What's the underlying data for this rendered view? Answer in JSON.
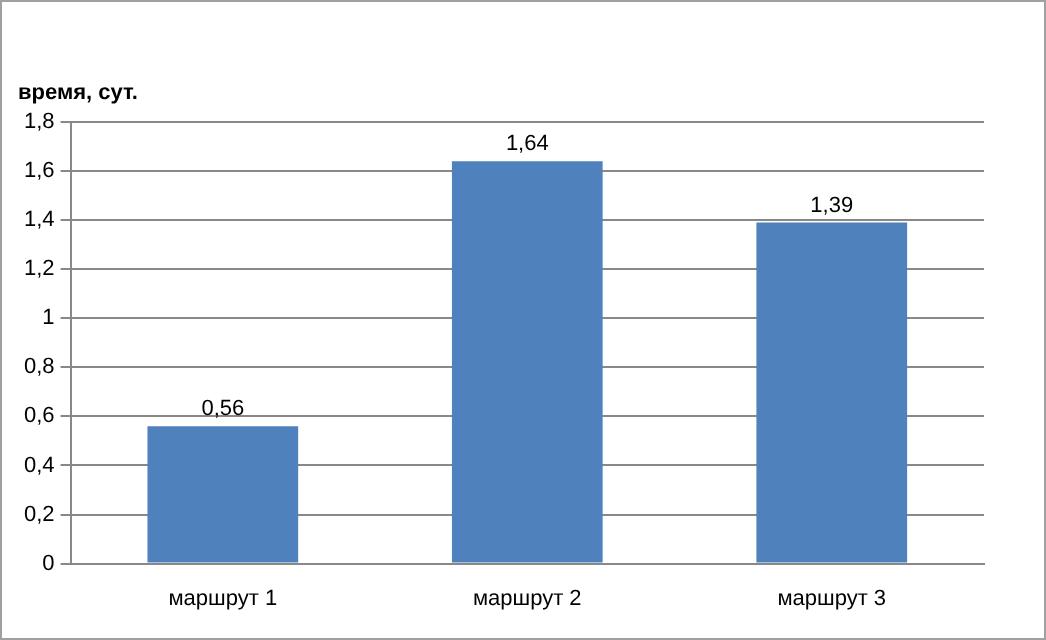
{
  "chart_data": {
    "type": "bar",
    "ylabel": "время, сут.",
    "categories": [
      "маршрут 1",
      "маршрут 2",
      "маршрут 3"
    ],
    "values": [
      0.56,
      1.64,
      1.39
    ],
    "color": "#4f81bd",
    "value_labels": [
      "0,56",
      "1,64",
      "1,39"
    ],
    "ylim": [
      0,
      1.8
    ],
    "yticks": [
      {
        "value": 0,
        "label": "0"
      },
      {
        "value": 0.2,
        "label": "0,2"
      },
      {
        "value": 0.4,
        "label": "0,4"
      },
      {
        "value": 0.6,
        "label": "0,6"
      },
      {
        "value": 0.8,
        "label": "0,8"
      },
      {
        "value": 1,
        "label": "1"
      },
      {
        "value": 1.2,
        "label": "1,2"
      },
      {
        "value": 1.4,
        "label": "1,4"
      },
      {
        "value": 1.6,
        "label": "1,6"
      },
      {
        "value": 1.8,
        "label": "1,8"
      }
    ],
    "grid": "y",
    "legend": false
  }
}
